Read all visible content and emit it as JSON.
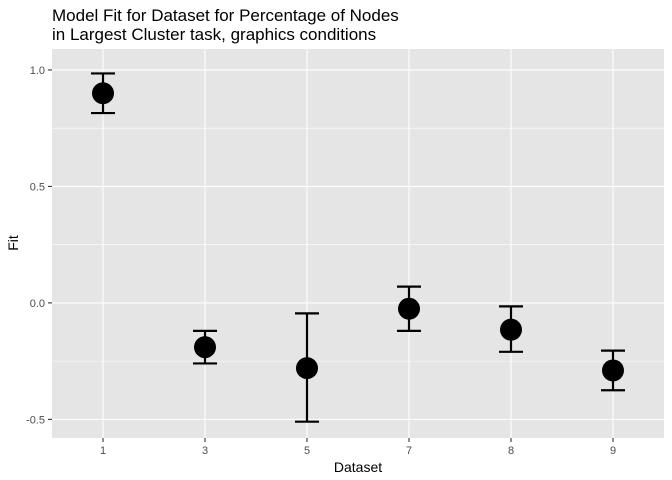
{
  "chart_data": {
    "type": "scatter",
    "title_lines": [
      "Model Fit for Dataset for Percentage of Nodes",
      "in Largest Cluster task, graphics conditions"
    ],
    "xlabel": "Dataset",
    "ylabel": "Fit",
    "categories": [
      "1",
      "3",
      "5",
      "7",
      "8",
      "9"
    ],
    "points": [
      {
        "x": "1",
        "y": 0.9,
        "lower": 0.815,
        "upper": 0.985
      },
      {
        "x": "3",
        "y": -0.19,
        "lower": -0.26,
        "upper": -0.12
      },
      {
        "x": "5",
        "y": -0.28,
        "lower": -0.51,
        "upper": -0.045
      },
      {
        "x": "7",
        "y": -0.025,
        "lower": -0.12,
        "upper": 0.07
      },
      {
        "x": "8",
        "y": -0.115,
        "lower": -0.21,
        "upper": -0.015
      },
      {
        "x": "9",
        "y": -0.29,
        "lower": -0.375,
        "upper": -0.205
      }
    ],
    "yticks": [
      1.0,
      0.5,
      0.0,
      -0.5
    ],
    "ytick_labels": [
      "1.0",
      "0.5",
      "0.0",
      "-0.5"
    ],
    "ylim": [
      -0.58,
      1.09
    ],
    "grid": true,
    "background": "#e5e5e5",
    "grid_color": "#ffffff",
    "point_color": "#000000"
  }
}
